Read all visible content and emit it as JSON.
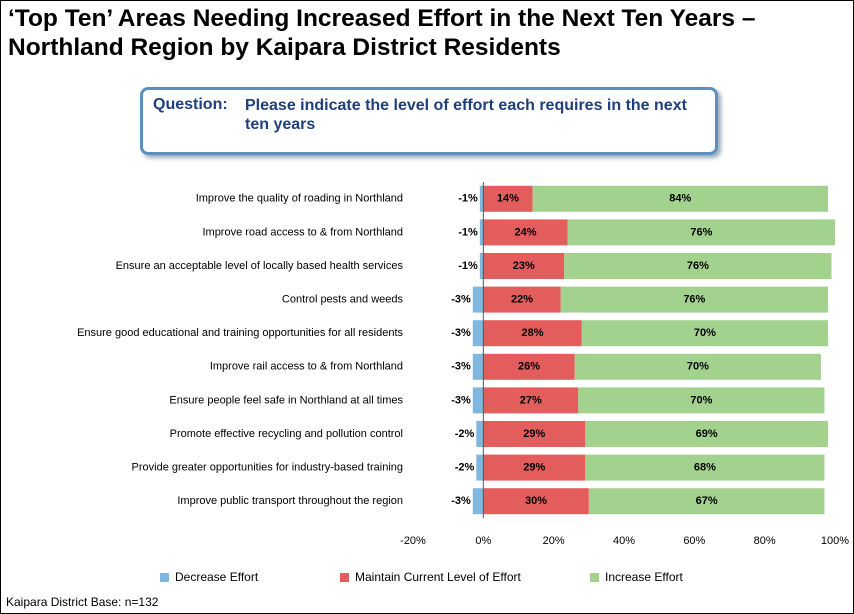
{
  "chart_data": {
    "type": "diverging_bar",
    "title": "‘Top Ten’ Areas Needing Increased Effort in the Next Ten Years – Northland Region by Kaipara District Residents",
    "question_label": "Question:",
    "question": "Please indicate the level of effort each requires in the next ten years",
    "footnote": "Kaipara District Base:  n=132",
    "categories": [
      "Improve the quality of roading in Northland",
      "Improve road access to & from Northland",
      "Ensure an acceptable level of locally based health services",
      "Control pests and weeds",
      "Ensure good educational and training opportunities for all residents",
      "Improve rail access to & from Northland",
      "Ensure people feel safe in Northland at all times",
      "Promote effective recycling and pollution control",
      "Provide greater opportunities for industry-based training",
      "Improve public transport throughout the region"
    ],
    "series": [
      {
        "name": "Decrease Effort",
        "color": "#7fb7df",
        "values": [
          -1,
          -1,
          -1,
          -3,
          -3,
          -3,
          -3,
          -2,
          -2,
          -3
        ],
        "value_labels": [
          "-1%",
          "-1%",
          "-1%",
          "-3%",
          "-3%",
          "-3%",
          "-3%",
          "-2%",
          "-2%",
          "-3%"
        ]
      },
      {
        "name": "Maintain Current Level of Effort",
        "color": "#e35d5d",
        "values": [
          14,
          24,
          23,
          22,
          28,
          26,
          27,
          29,
          29,
          30
        ],
        "value_labels": [
          "14%",
          "24%",
          "23%",
          "22%",
          "28%",
          "26%",
          "27%",
          "29%",
          "29%",
          "30%"
        ]
      },
      {
        "name": "Increase Effort",
        "color": "#a3d28e",
        "values": [
          84,
          76,
          76,
          76,
          70,
          70,
          70,
          69,
          68,
          67
        ],
        "value_labels": [
          "84%",
          "76%",
          "76%",
          "76%",
          "70%",
          "70%",
          "70%",
          "69%",
          "68%",
          "67%"
        ]
      }
    ],
    "xlim": [
      -20,
      100
    ],
    "xticks": [
      {
        "value": -20,
        "label": "-20%"
      },
      {
        "value": 0,
        "label": "0%"
      },
      {
        "value": 20,
        "label": "20%"
      },
      {
        "value": 40,
        "label": "40%"
      },
      {
        "value": 60,
        "label": "60%"
      },
      {
        "value": 80,
        "label": "80%"
      },
      {
        "value": 100,
        "label": "100%"
      }
    ]
  }
}
